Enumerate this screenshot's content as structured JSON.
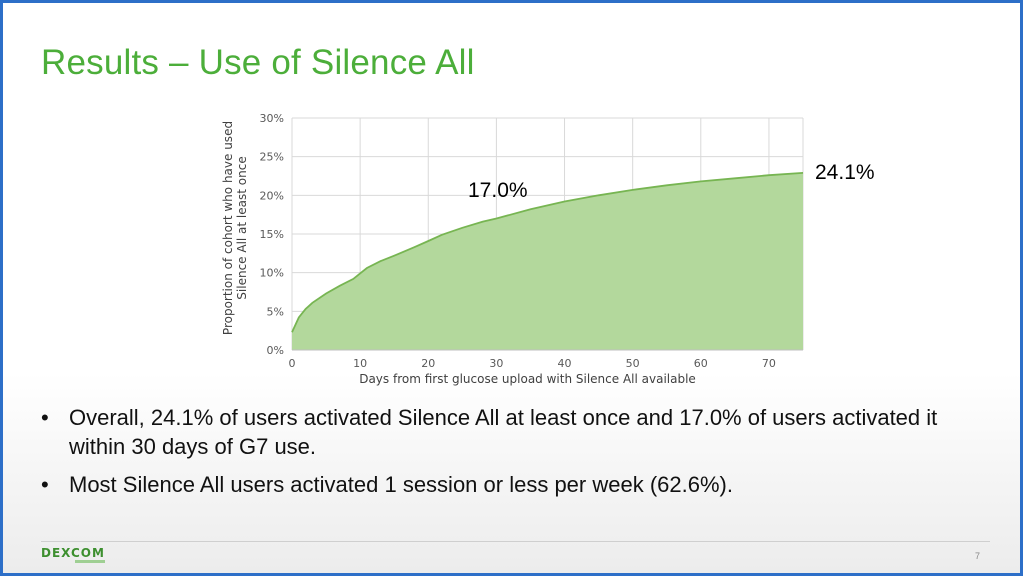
{
  "slide": {
    "title": "Results – Use of Silence All",
    "callouts": [
      "17.0%",
      "24.1%"
    ],
    "bullets": [
      "Overall, 24.1% of users activated Silence All at least once and 17.0% of users activated it within 30 days of G7 use.",
      "Most Silence All users activated 1 session or less per week (62.6%)."
    ],
    "bullet_char": "•",
    "logo": "DEXCOM",
    "page_number": "7",
    "colors": {
      "title": "#4cae3a",
      "area_fill": "#b3d89c",
      "area_line": "#77b552",
      "frame": "#2d6fc8"
    }
  },
  "chart_data": {
    "type": "area",
    "xlabel": "Days from first glucose upload with Silence All available",
    "ylabel_lines": [
      "Proportion of cohort who have used",
      "Silence All at least once"
    ],
    "x_ticks": [
      0,
      10,
      20,
      30,
      40,
      50,
      60,
      70
    ],
    "y_ticks": [
      "0%",
      "5%",
      "10%",
      "15%",
      "20%",
      "25%",
      "30%"
    ],
    "xlim": [
      0,
      75
    ],
    "ylim": [
      0,
      30
    ],
    "grid": true,
    "series": [
      {
        "x": [
          0,
          1,
          2,
          3,
          5,
          7,
          9,
          10,
          11,
          13,
          15,
          18,
          20,
          22,
          25,
          28,
          30,
          35,
          40,
          45,
          50,
          55,
          60,
          65,
          70,
          75
        ],
        "y": [
          2.3,
          4.2,
          5.3,
          6.1,
          7.3,
          8.3,
          9.2,
          9.9,
          10.6,
          11.5,
          12.2,
          13.3,
          14.1,
          14.9,
          15.8,
          16.6,
          17.0,
          18.2,
          19.2,
          20.0,
          20.7,
          21.3,
          21.8,
          22.2,
          22.6,
          22.9
        ]
      }
    ]
  }
}
